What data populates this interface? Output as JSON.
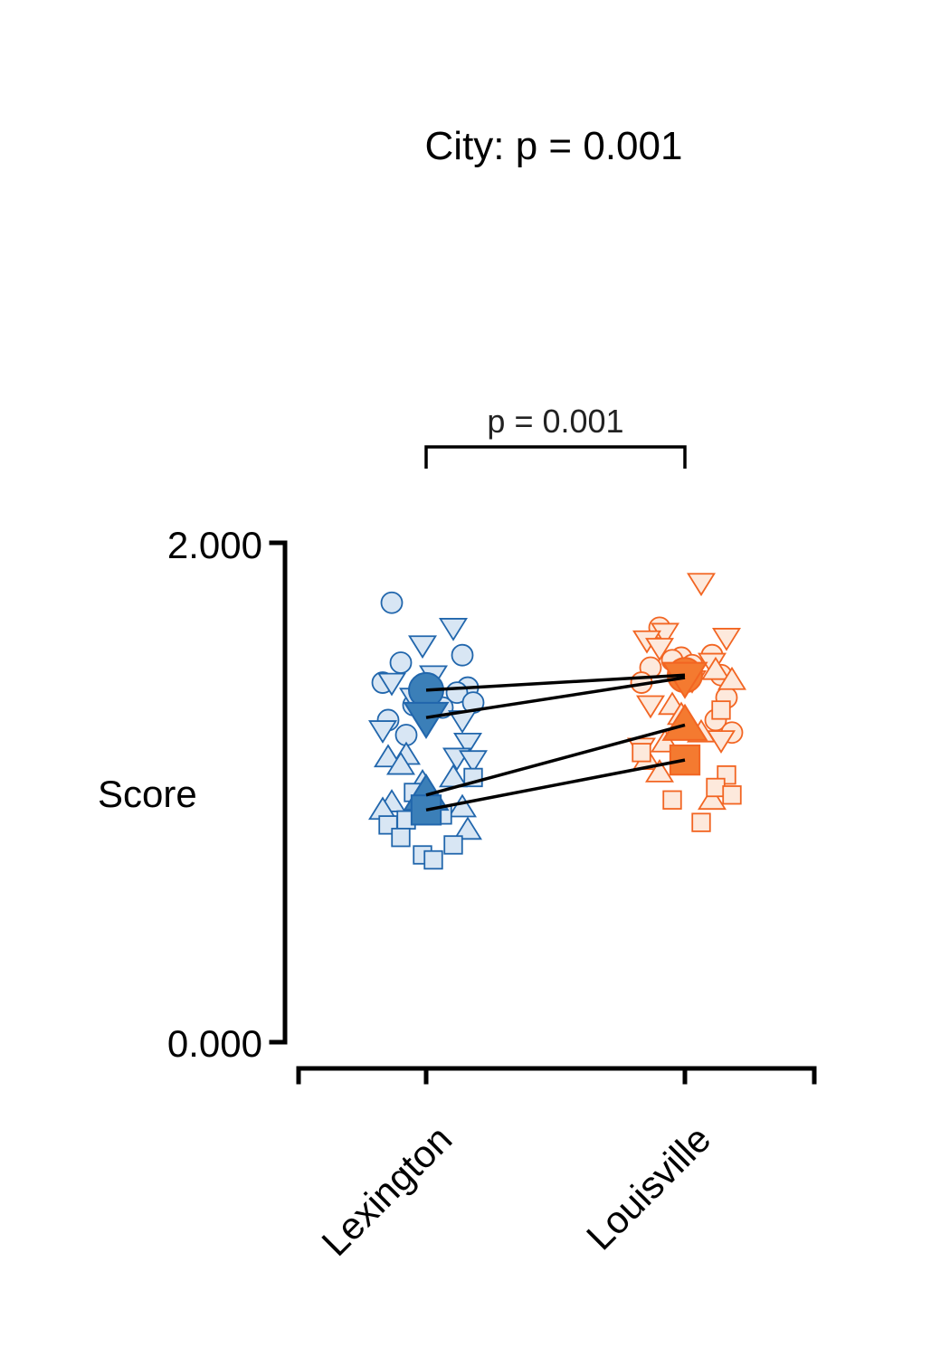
{
  "chart_data": {
    "type": "scatter",
    "title": "City: p = 0.001",
    "ylabel": "Score",
    "xlabel": "",
    "categories": [
      "Lexington",
      "Louisville"
    ],
    "ylim": [
      0,
      2
    ],
    "yticks": [
      "0.000",
      "2.000"
    ],
    "grid": false,
    "legend": "none",
    "colors": {
      "Lexington": {
        "stroke": "#2166ac",
        "fill_light": "#d8e6f4",
        "fill_mean": "#3b7fb8"
      },
      "Louisville": {
        "stroke": "#f26522",
        "fill_light": "#fde9dc",
        "fill_mean": "#f47a30"
      }
    },
    "significance": [
      {
        "from": "Lexington",
        "to": "Louisville",
        "label": "p = 0.001"
      }
    ],
    "series": [
      {
        "shape": "circle",
        "means": [
          1.41,
          1.47
        ],
        "points": {
          "Lexington": [
            1.76,
            1.55,
            1.44,
            1.42,
            1.4,
            1.36,
            1.35,
            1.34,
            1.23,
            1.29,
            1.52
          ],
          "Louisville": [
            1.66,
            1.55,
            1.54,
            1.51,
            1.5,
            1.47,
            1.44,
            1.38,
            1.29,
            1.24,
            1.53
          ]
        }
      },
      {
        "shape": "triangle-down",
        "means": [
          1.3,
          1.46
        ],
        "points": {
          "Lexington": [
            1.66,
            1.59,
            1.47,
            1.44,
            1.29,
            1.25,
            1.2,
            1.14,
            1.13,
            1.38
          ],
          "Louisville": [
            1.84,
            1.64,
            1.61,
            1.58,
            1.52,
            1.47,
            1.45,
            1.35,
            1.21,
            1.18,
            1.62
          ]
        }
      },
      {
        "shape": "triangle-up",
        "means": [
          0.99,
          1.27
        ],
        "points": {
          "Lexington": [
            1.15,
            1.14,
            1.11,
            1.06,
            1.04,
            0.97,
            0.96,
            0.94,
            0.93,
            0.85
          ],
          "Louisville": [
            1.49,
            1.45,
            1.35,
            1.24,
            1.2,
            1.13,
            1.08,
            0.97,
            1.31
          ]
        }
      },
      {
        "shape": "square",
        "means": [
          0.93,
          1.13
        ],
        "points": {
          "Lexington": [
            1.06,
            1.0,
            0.91,
            0.89,
            0.87,
            0.82,
            0.79,
            0.75,
            0.73
          ],
          "Louisville": [
            1.33,
            1.16,
            1.07,
            1.02,
            0.99,
            0.97,
            0.88
          ]
        }
      }
    ]
  }
}
